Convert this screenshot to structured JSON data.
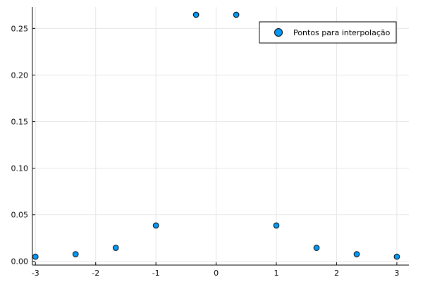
{
  "chart_data": {
    "type": "scatter",
    "title": "",
    "xlabel": "",
    "ylabel": "",
    "xlim": [
      -3.05,
      3.2
    ],
    "ylim": [
      -0.004,
      0.273
    ],
    "grid": true,
    "legend_position": "top-right",
    "x_ticks": [
      -3,
      -2,
      -1,
      0,
      1,
      2,
      3
    ],
    "x_tick_labels": [
      "-3",
      "-2",
      "-1",
      "0",
      "1",
      "2",
      "3"
    ],
    "y_ticks": [
      0.0,
      0.05,
      0.1,
      0.15,
      0.2,
      0.25
    ],
    "y_tick_labels": [
      "0.00",
      "0.05",
      "0.10",
      "0.15",
      "0.20",
      "0.25"
    ],
    "series": [
      {
        "name": "Pontos para interpolação",
        "color": "#009af9",
        "marker_edge_color": "#000000",
        "x": [
          -3,
          -2.3333,
          -1.6667,
          -1,
          -0.3333,
          0.3333,
          1,
          1.6667,
          2.3333,
          3
        ],
        "y": [
          0.005,
          0.0077,
          0.0145,
          0.0385,
          0.2647,
          0.2647,
          0.0385,
          0.0145,
          0.0077,
          0.005
        ]
      }
    ]
  }
}
